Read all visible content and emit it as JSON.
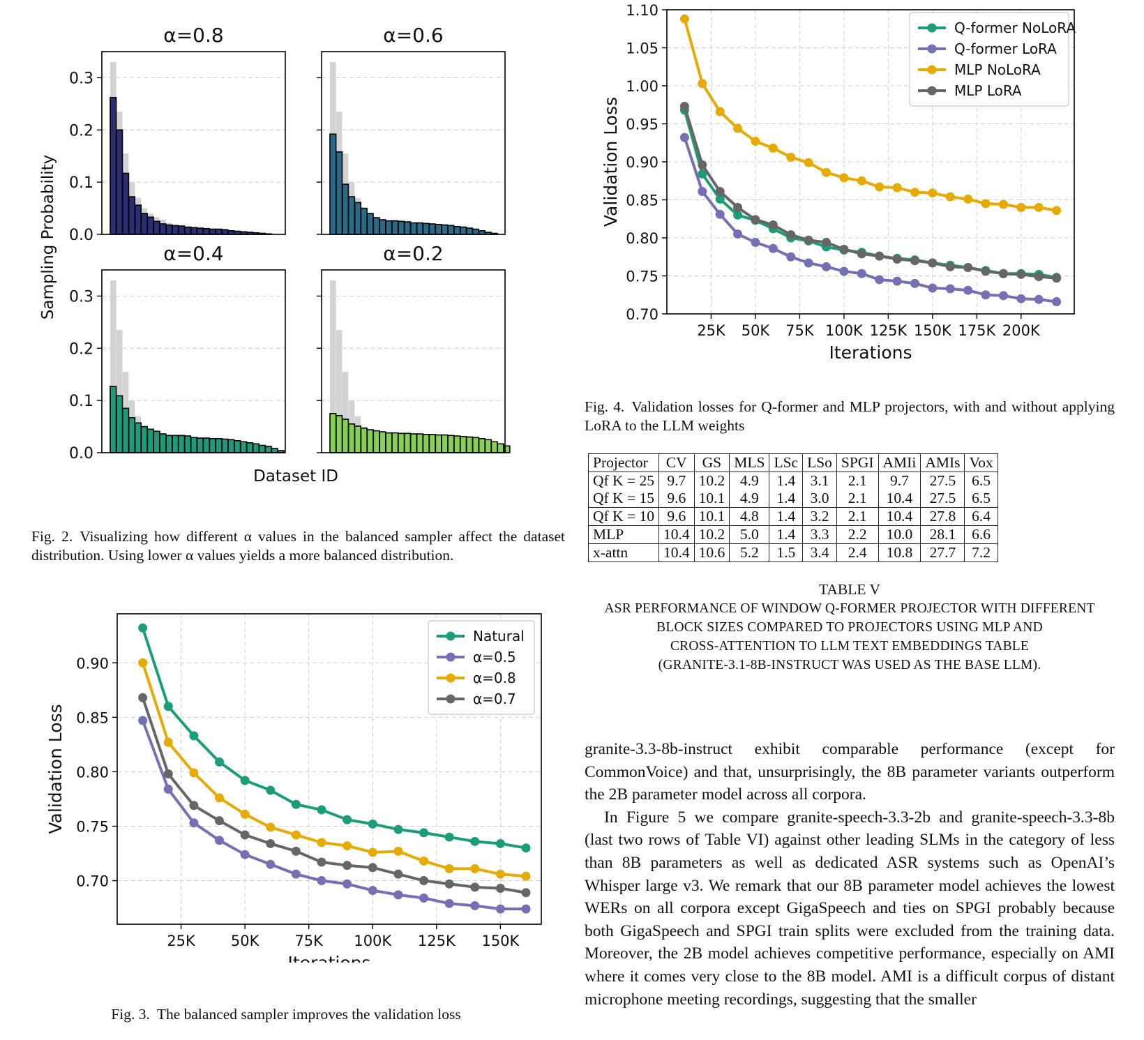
{
  "fig2": {
    "panels": [
      {
        "title": "α=0.8",
        "color": "#2a2f73",
        "values": [
          0.262,
          0.2,
          0.117,
          0.072,
          0.056,
          0.04,
          0.033,
          0.025,
          0.02,
          0.018,
          0.017,
          0.016,
          0.014,
          0.013,
          0.012,
          0.011,
          0.01,
          0.01,
          0.009,
          0.007,
          0.006,
          0.005,
          0.004,
          0.003,
          0.002,
          0.001
        ]
      },
      {
        "title": "α=0.6",
        "color": "#2a6a86",
        "values": [
          0.192,
          0.158,
          0.096,
          0.072,
          0.061,
          0.05,
          0.04,
          0.032,
          0.028,
          0.026,
          0.026,
          0.025,
          0.024,
          0.022,
          0.022,
          0.021,
          0.02,
          0.019,
          0.018,
          0.017,
          0.015,
          0.014,
          0.012,
          0.01,
          0.007,
          0.004,
          0.002
        ]
      },
      {
        "title": "α=0.4",
        "color": "#1e9b7a",
        "values": [
          0.127,
          0.109,
          0.085,
          0.067,
          0.057,
          0.05,
          0.045,
          0.041,
          0.036,
          0.033,
          0.033,
          0.033,
          0.032,
          0.029,
          0.028,
          0.028,
          0.027,
          0.027,
          0.026,
          0.025,
          0.023,
          0.021,
          0.019,
          0.017,
          0.014,
          0.012,
          0.008,
          0.004
        ]
      },
      {
        "title": "α=0.2",
        "color": "#86d155",
        "values": [
          0.075,
          0.071,
          0.064,
          0.055,
          0.051,
          0.047,
          0.044,
          0.042,
          0.04,
          0.038,
          0.038,
          0.037,
          0.037,
          0.036,
          0.036,
          0.035,
          0.035,
          0.034,
          0.034,
          0.033,
          0.032,
          0.031,
          0.03,
          0.029,
          0.027,
          0.025,
          0.021,
          0.017,
          0.013
        ]
      }
    ],
    "natural": [
      0.33,
      0.235,
      0.155,
      0.1,
      0.07,
      0.05,
      0.04,
      0.033,
      0.028,
      0.022,
      0.018,
      0.016,
      0.014,
      0.012,
      0.011,
      0.01,
      0.009,
      0.008,
      0.007,
      0.006,
      0.005,
      0.004,
      0.004,
      0.003,
      0.002,
      0.001
    ],
    "yticks": [
      "0.3",
      "0.2",
      "0.1",
      "0.0"
    ],
    "ylabel": "Sampling Probability",
    "xlabel": "Dataset ID",
    "caption_label": "Fig. 2.",
    "caption_text": "Visualizing how different α values in the balanced sampler affect the dataset distribution. Using lower α values yields a more balanced distribution."
  },
  "chart_data": [
    {
      "type": "line",
      "xlabel": "Iterations",
      "ylabel": "Validation Loss",
      "x": [
        10000,
        20000,
        30000,
        40000,
        50000,
        60000,
        70000,
        80000,
        90000,
        100000,
        110000,
        120000,
        130000,
        140000,
        150000,
        160000,
        170000,
        180000,
        190000,
        200000,
        210000,
        220000
      ],
      "xticks": [
        "25K",
        "50K",
        "75K",
        "100K",
        "125K",
        "150K",
        "175K",
        "200K"
      ],
      "yticks": [
        "1.10",
        "1.05",
        "1.00",
        "0.95",
        "0.90",
        "0.85",
        "0.80",
        "0.75",
        "0.70"
      ],
      "ylim": [
        0.7,
        1.1
      ],
      "legend": "top-right",
      "grid": true,
      "series": [
        {
          "name": "Q-former NoLoRA",
          "color": "#1b9e77",
          "values": [
            0.968,
            0.884,
            0.851,
            0.83,
            0.823,
            0.812,
            0.8,
            0.796,
            0.788,
            0.784,
            0.781,
            0.776,
            0.773,
            0.771,
            0.767,
            0.764,
            0.761,
            0.757,
            0.753,
            0.753,
            0.752,
            0.748
          ]
        },
        {
          "name": "Q-former LoRA",
          "color": "#7570b3",
          "values": [
            0.932,
            0.861,
            0.831,
            0.805,
            0.794,
            0.786,
            0.775,
            0.767,
            0.762,
            0.756,
            0.753,
            0.745,
            0.743,
            0.74,
            0.734,
            0.733,
            0.731,
            0.725,
            0.724,
            0.72,
            0.719,
            0.716
          ]
        },
        {
          "name": "MLP NoLoRA",
          "color": "#e6ab02",
          "values": [
            1.088,
            1.003,
            0.966,
            0.944,
            0.927,
            0.918,
            0.906,
            0.899,
            0.886,
            0.879,
            0.875,
            0.867,
            0.866,
            0.86,
            0.859,
            0.854,
            0.851,
            0.845,
            0.844,
            0.84,
            0.84,
            0.836
          ]
        },
        {
          "name": "MLP LoRA",
          "color": "#666666",
          "values": [
            0.973,
            0.896,
            0.861,
            0.84,
            0.824,
            0.817,
            0.804,
            0.797,
            0.794,
            0.785,
            0.779,
            0.776,
            0.772,
            0.77,
            0.767,
            0.762,
            0.761,
            0.756,
            0.753,
            0.752,
            0.749,
            0.747
          ]
        }
      ]
    },
    {
      "type": "line",
      "xlabel": "Iterations",
      "ylabel": "Validation Loss",
      "x": [
        10000,
        20000,
        30000,
        40000,
        50000,
        60000,
        70000,
        80000,
        90000,
        100000,
        110000,
        120000,
        130000,
        140000,
        150000,
        160000
      ],
      "xticks": [
        "25K",
        "50K",
        "75K",
        "100K",
        "125K",
        "150K"
      ],
      "yticks": [
        "0.90",
        "0.85",
        "0.80",
        "0.75",
        "0.70"
      ],
      "ylim": [
        0.66,
        0.945
      ],
      "legend": "top-right",
      "grid": true,
      "series": [
        {
          "name": "Natural",
          "color": "#1b9e77",
          "values": [
            0.932,
            0.86,
            0.833,
            0.809,
            0.792,
            0.783,
            0.77,
            0.765,
            0.756,
            0.752,
            0.747,
            0.744,
            0.74,
            0.736,
            0.734,
            0.73
          ]
        },
        {
          "name": "α=0.5",
          "color": "#7570b3",
          "values": [
            0.847,
            0.784,
            0.753,
            0.737,
            0.724,
            0.715,
            0.706,
            0.7,
            0.697,
            0.691,
            0.687,
            0.684,
            0.679,
            0.677,
            0.674,
            0.674
          ]
        },
        {
          "name": "α=0.8",
          "color": "#e6ab02",
          "values": [
            0.9,
            0.827,
            0.799,
            0.776,
            0.761,
            0.749,
            0.742,
            0.735,
            0.732,
            0.726,
            0.727,
            0.718,
            0.711,
            0.711,
            0.706,
            0.704
          ]
        },
        {
          "name": "α=0.7",
          "color": "#666666",
          "values": [
            0.868,
            0.798,
            0.769,
            0.755,
            0.742,
            0.734,
            0.727,
            0.717,
            0.714,
            0.712,
            0.706,
            0.7,
            0.697,
            0.694,
            0.693,
            0.689
          ]
        }
      ]
    }
  ],
  "fig3": {
    "caption_label": "Fig. 3.",
    "caption_text": "The balanced sampler improves the validation loss"
  },
  "fig4": {
    "caption_label": "Fig. 4.",
    "caption_text": "Validation losses for Q-former and MLP projectors, with and without applying LoRA to the LLM weights"
  },
  "table": {
    "headers": [
      "Projector",
      "CV",
      "GS",
      "MLS",
      "LSc",
      "LSo",
      "SPGI",
      "AMIi",
      "AMIs",
      "Vox"
    ],
    "rows": [
      [
        "Qf K = 25",
        "9.7",
        "10.2",
        "4.9",
        "1.4",
        "3.1",
        "2.1",
        "9.7",
        "27.5",
        "6.5"
      ],
      [
        "Qf K = 15",
        "9.6",
        "10.1",
        "4.9",
        "1.4",
        "3.0",
        "2.1",
        "10.4",
        "27.5",
        "6.5"
      ],
      [
        "Qf K = 10",
        "9.6",
        "10.1",
        "4.8",
        "1.4",
        "3.2",
        "2.1",
        "10.4",
        "27.8",
        "6.4"
      ],
      [
        "MLP",
        "10.4",
        "10.2",
        "5.0",
        "1.4",
        "3.3",
        "2.2",
        "10.0",
        "28.1",
        "6.6"
      ],
      [
        "x-attn",
        "10.4",
        "10.6",
        "5.2",
        "1.5",
        "3.4",
        "2.4",
        "10.8",
        "27.7",
        "7.2"
      ]
    ],
    "title": "TABLE V",
    "caption_lines": [
      "ASR PERFORMANCE OF WINDOW Q-FORMER PROJECTOR WITH DIFFERENT",
      "BLOCK SIZES COMPARED TO PROJECTORS USING MLP AND",
      "CROSS-ATTENTION TO LLM TEXT EMBEDDINGS TABLE",
      "(GRANITE-3.1-8B-INSTRUCT WAS USED AS THE BASE LLM)."
    ]
  },
  "body": {
    "p1": "granite-3.3-8b-instruct exhibit comparable performance (except for CommonVoice) and that, unsurprisingly, the 8B parameter variants outperform the 2B parameter model across all corpora.",
    "p2": "In Figure 5 we compare granite-speech-3.3-2b and granite-speech-3.3-8b (last two rows of Table VI) against other leading SLMs in the category of less than 8B parameters as well as dedicated ASR systems such as OpenAI’s Whisper large v3. We remark that our 8B parameter model achieves the lowest WERs on all corpora except GigaSpeech and ties on SPGI probably because both GigaSpeech and SPGI train splits were excluded from the training data. Moreover, the 2B model achieves competitive performance, especially on AMI where it comes very close to the 8B model. AMI is a difficult corpus of distant microphone meeting recordings, suggesting that the smaller"
  }
}
